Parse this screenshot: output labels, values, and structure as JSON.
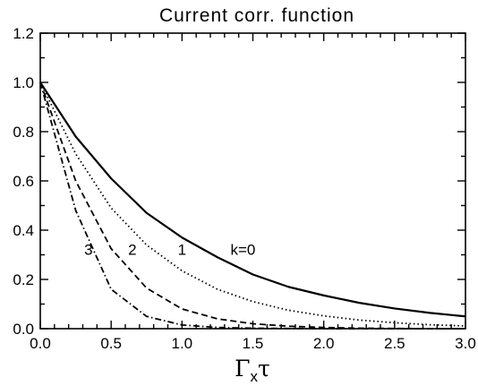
{
  "chart_data": {
    "type": "line",
    "title": "Current corr. function",
    "xlabel_main": "Γ",
    "xlabel_sub": "x",
    "xlabel_tail": "τ",
    "ylabel": "",
    "xlim": [
      0,
      3.0
    ],
    "ylim": [
      0,
      1.2
    ],
    "x_ticks": [
      "0.0",
      "0.5",
      "1.0",
      "1.5",
      "2.0",
      "2.5",
      "3.0"
    ],
    "y_ticks": [
      "0.0",
      "0.2",
      "0.4",
      "0.6",
      "0.8",
      "1.0",
      "1.2"
    ],
    "grid": false,
    "legend": "none",
    "x": [
      0,
      0.25,
      0.5,
      0.75,
      1.0,
      1.25,
      1.5,
      1.75,
      2.0,
      2.25,
      2.5,
      2.75,
      3.0
    ],
    "series": [
      {
        "label": "k=0",
        "style": "solid",
        "values": [
          1.0,
          0.78,
          0.61,
          0.47,
          0.37,
          0.29,
          0.22,
          0.17,
          0.135,
          0.105,
          0.082,
          0.064,
          0.05
        ]
      },
      {
        "label": "1",
        "style": "dotted",
        "values": [
          1.0,
          0.71,
          0.49,
          0.34,
          0.235,
          0.16,
          0.11,
          0.075,
          0.052,
          0.035,
          0.024,
          0.016,
          0.011
        ]
      },
      {
        "label": "2",
        "style": "dashed",
        "values": [
          1.0,
          0.6,
          0.325,
          0.165,
          0.08,
          0.04,
          0.02,
          0.01,
          0.005,
          0.002,
          0.001,
          0.0,
          0.0
        ]
      },
      {
        "label": "3",
        "style": "dashdot",
        "values": [
          1.0,
          0.48,
          0.16,
          0.05,
          0.015,
          0.005,
          0.002,
          0.001,
          0.0,
          0.0,
          0.0,
          0.0,
          0.0
        ]
      }
    ],
    "annotations": [
      {
        "text": "k=0",
        "x": 1.43,
        "y": 0.3
      },
      {
        "text": "1",
        "x": 1.0,
        "y": 0.3
      },
      {
        "text": "2",
        "x": 0.65,
        "y": 0.3
      },
      {
        "text": "3",
        "x": 0.34,
        "y": 0.3
      }
    ]
  }
}
